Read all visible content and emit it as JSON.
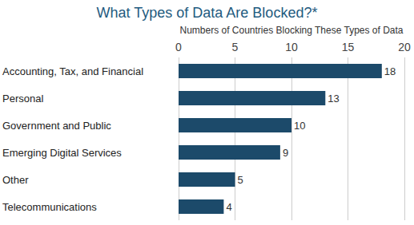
{
  "chart_data": {
    "type": "bar",
    "title": "What Types of Data Are Blocked?*",
    "xlabel": "Numbers of Countries Blocking These Types of Data",
    "categories": [
      "Accounting, Tax, and Financial",
      "Personal",
      "Government and Public",
      "Emerging Digital Services",
      "Other",
      "Telecommunications"
    ],
    "values": [
      18,
      13,
      10,
      9,
      5,
      4
    ],
    "color": "#1c4a6a",
    "orientation": "horizontal",
    "data_labels": true,
    "xlim": [
      0,
      20
    ],
    "xticks": [
      0,
      5,
      10,
      15,
      20
    ],
    "grid": true
  }
}
